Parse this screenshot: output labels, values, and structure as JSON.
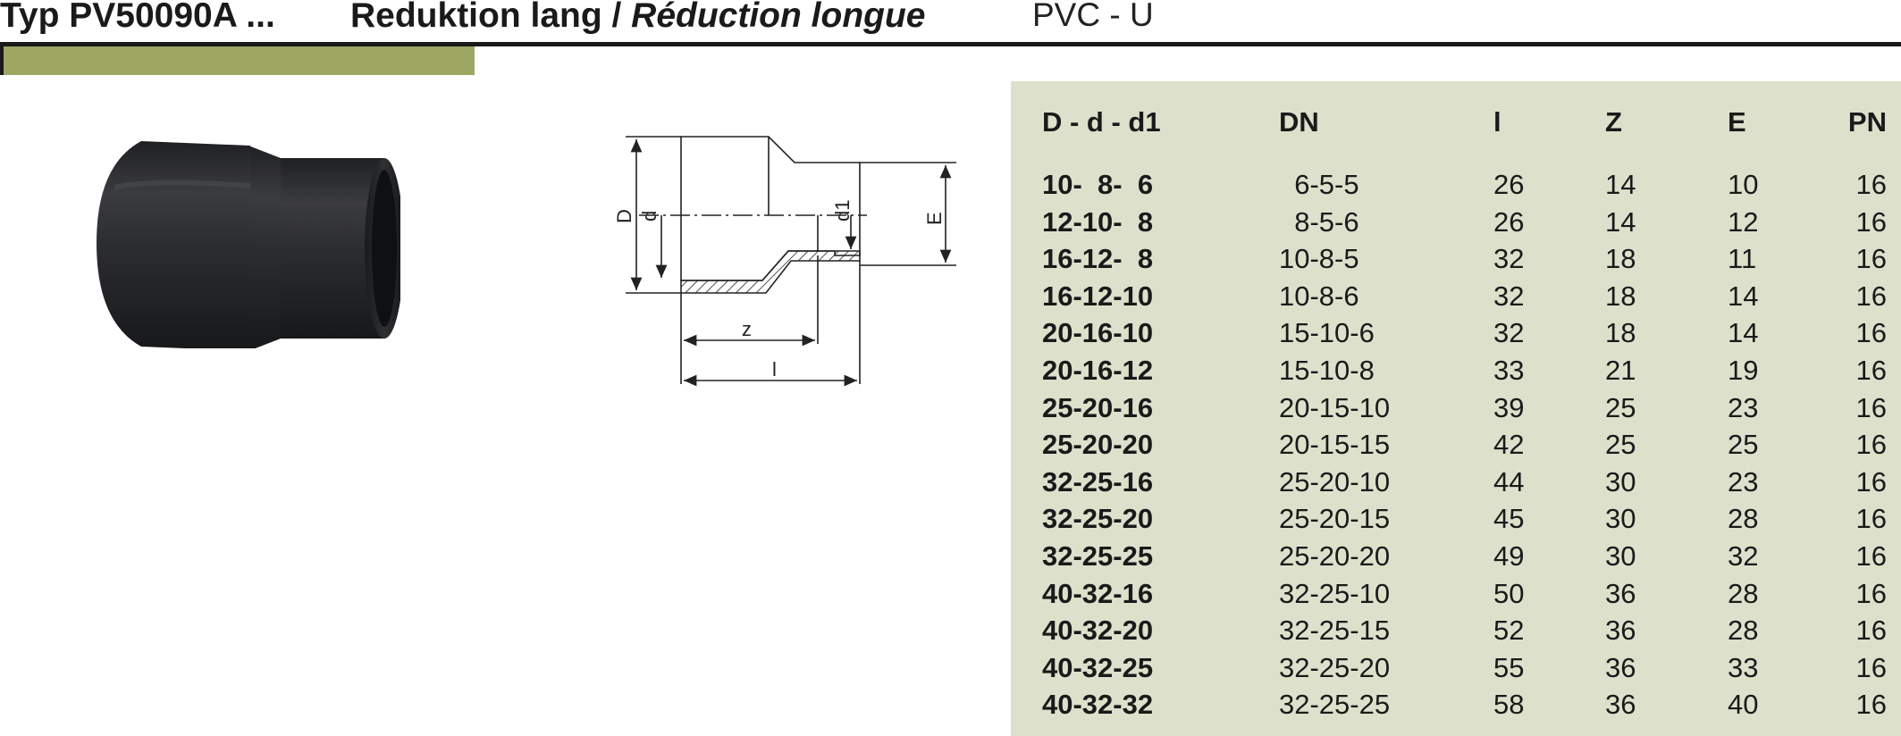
{
  "header": {
    "type_code": "Typ PV50090A ...",
    "title_de": "Reduktion lang / ",
    "title_fr": "Réduction longue",
    "material": "PVC - U"
  },
  "colors": {
    "accent": "#9ea762",
    "table_background": "#dde1cc",
    "rule": "#1a1a1a",
    "fitting": "#2b2c2e"
  },
  "drawing": {
    "label_D": "D",
    "label_d": "d",
    "label_d1": "d1",
    "label_E": "E",
    "label_z": "z",
    "label_l": "l"
  },
  "table": {
    "headers": [
      "D - d - d1",
      "DN",
      "l",
      "Z",
      "E",
      "PN"
    ],
    "rows": [
      [
        "10-  8-  6",
        "  6-5-5",
        "26",
        "14",
        "10",
        "16"
      ],
      [
        "12-10-  8",
        "  8-5-6",
        "26",
        "14",
        "12",
        "16"
      ],
      [
        "16-12-  8",
        "10-8-5",
        "32",
        "18",
        "11",
        "16"
      ],
      [
        "16-12-10",
        "10-8-6",
        "32",
        "18",
        "14",
        "16"
      ],
      [
        "20-16-10",
        "15-10-6",
        "32",
        "18",
        "14",
        "16"
      ],
      [
        "20-16-12",
        "15-10-8",
        "33",
        "21",
        "19",
        "16"
      ],
      [
        "25-20-16",
        "20-15-10",
        "39",
        "25",
        "23",
        "16"
      ],
      [
        "25-20-20",
        "20-15-15",
        "42",
        "25",
        "25",
        "16"
      ],
      [
        "32-25-16",
        "25-20-10",
        "44",
        "30",
        "23",
        "16"
      ],
      [
        "32-25-20",
        "25-20-15",
        "45",
        "30",
        "28",
        "16"
      ],
      [
        "32-25-25",
        "25-20-20",
        "49",
        "30",
        "32",
        "16"
      ],
      [
        "40-32-16",
        "32-25-10",
        "50",
        "36",
        "28",
        "16"
      ],
      [
        "40-32-20",
        "32-25-15",
        "52",
        "36",
        "28",
        "16"
      ],
      [
        "40-32-25",
        "32-25-20",
        "55",
        "36",
        "33",
        "16"
      ],
      [
        "40-32-32",
        "32-25-25",
        "58",
        "36",
        "40",
        "16"
      ]
    ]
  }
}
